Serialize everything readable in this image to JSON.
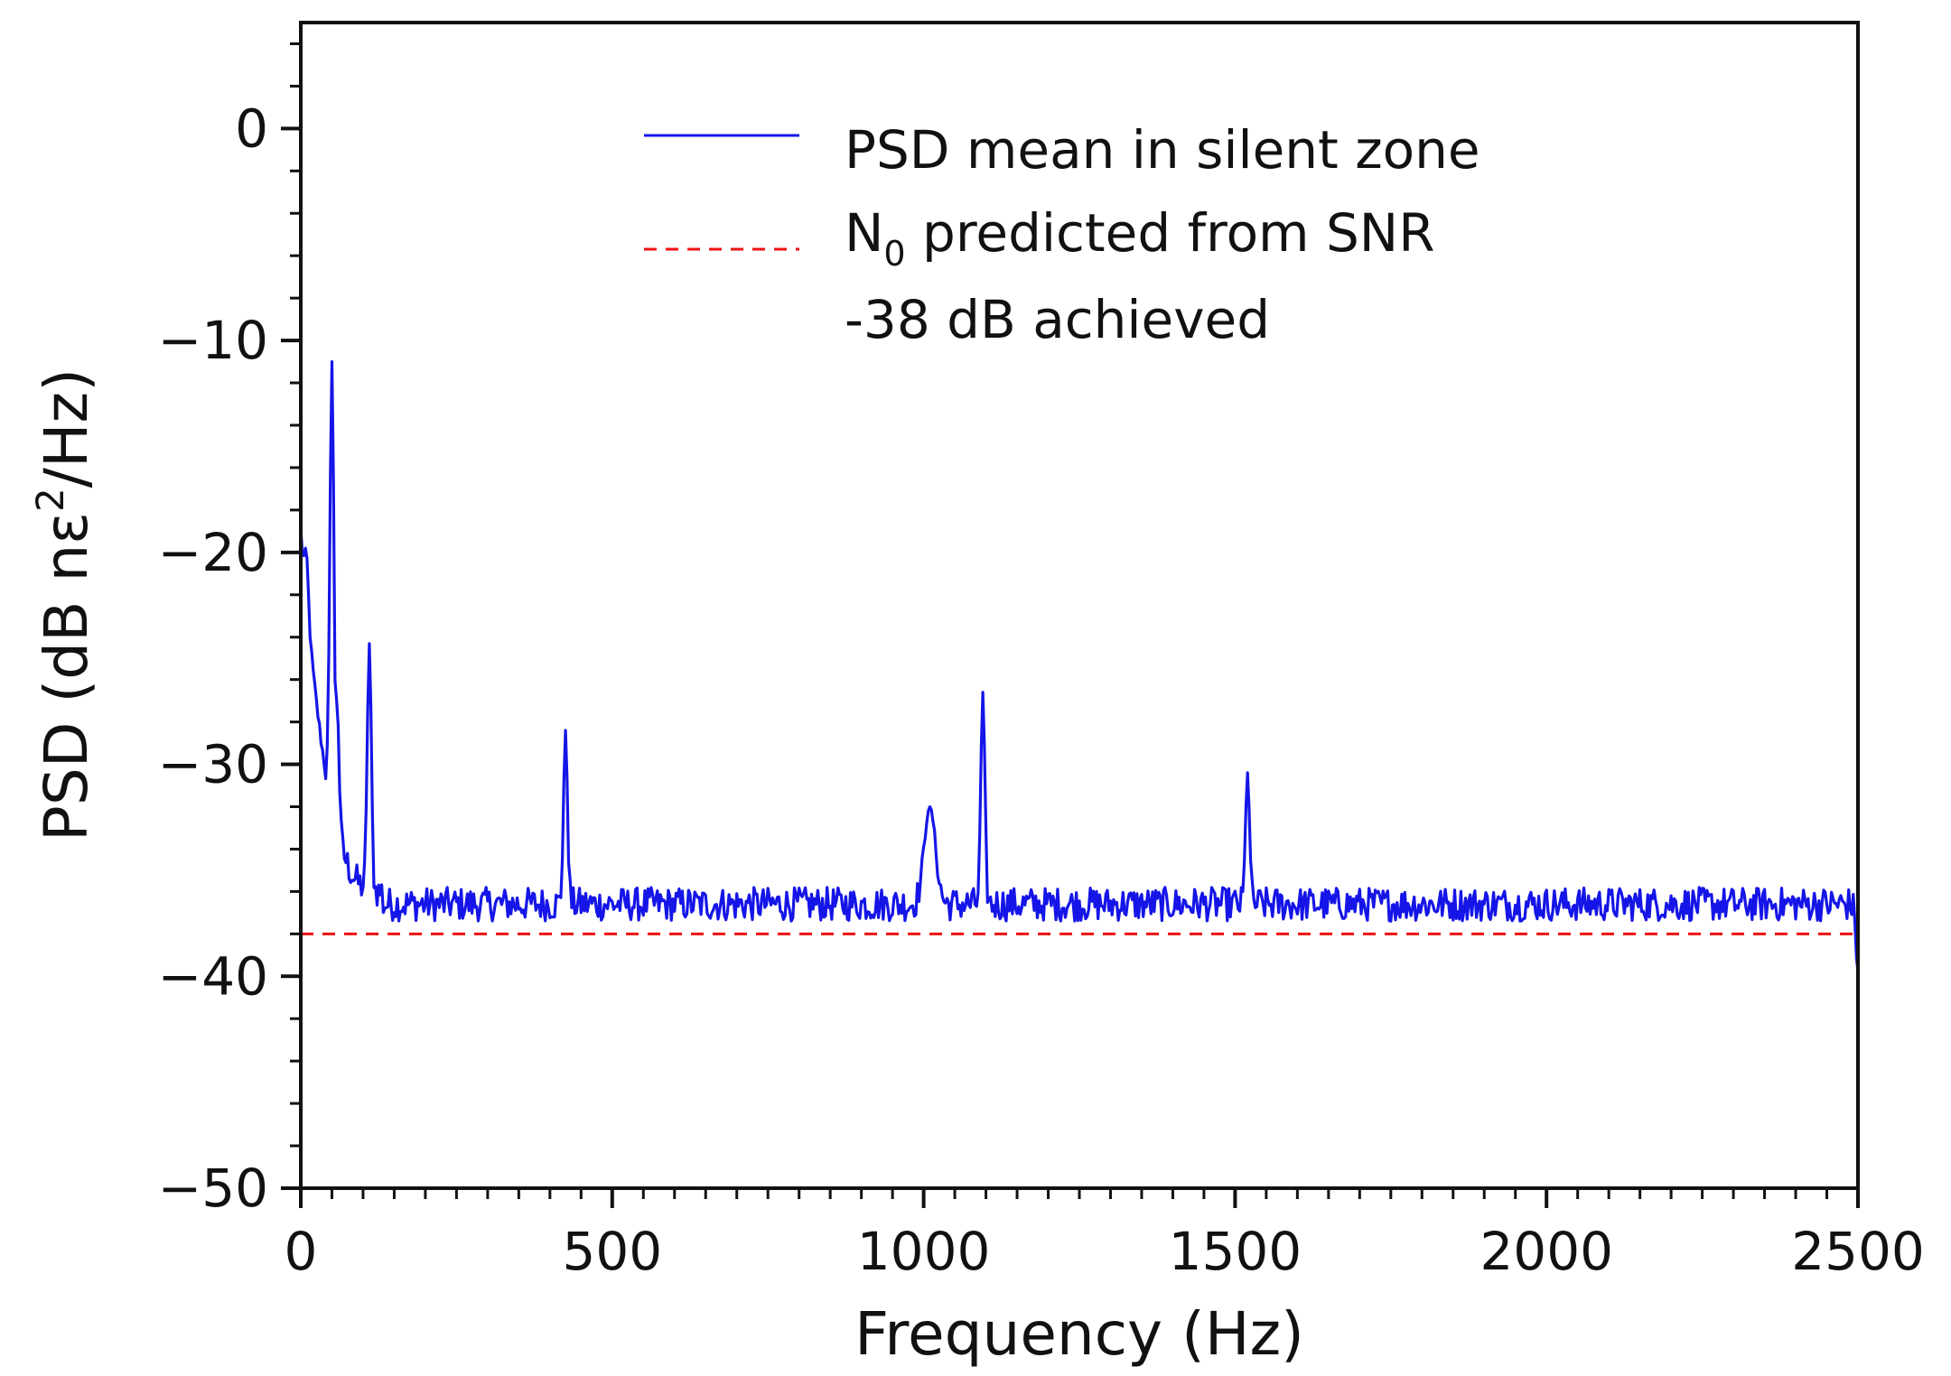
{
  "chart_data": {
    "type": "line",
    "title": "",
    "xlabel": "Frequency (Hz)",
    "ylabel": {
      "prefix": "PSD (dB nε",
      "superscript": "2",
      "suffix": "/Hz)"
    },
    "xlim": [
      0,
      2500
    ],
    "ylim": [
      -50,
      5
    ],
    "xticks": [
      0,
      500,
      1000,
      1500,
      2000,
      2500
    ],
    "yticks": [
      -50,
      -40,
      -30,
      -20,
      -10,
      0
    ],
    "xtick_labels": [
      "0",
      "500",
      "1000",
      "1500",
      "2000",
      "2500"
    ],
    "ytick_labels": [
      "−50",
      "−40",
      "−30",
      "−20",
      "−10",
      "0"
    ],
    "grid": false,
    "legend_position": "top-center",
    "series": [
      {
        "name": "PSD mean in silent zone",
        "color": "#1515e8",
        "style": "solid",
        "baseline_db": -36.6,
        "noise_amplitude_db": 1.6,
        "decay_start": [
          0,
          -19.0
        ],
        "decay_end": [
          130,
          -36.0
        ],
        "peaks": [
          {
            "f": 8,
            "psd": -19.8
          },
          {
            "f": 50,
            "psd": -11.0
          },
          {
            "f": 58,
            "psd": -27.0
          },
          {
            "f": 110,
            "psd": -24.3
          },
          {
            "f": 425,
            "psd": -28.4
          },
          {
            "f": 1010,
            "psd": -32.0
          },
          {
            "f": 1095,
            "psd": -26.6
          },
          {
            "f": 1520,
            "psd": -30.4
          },
          {
            "f": 2500,
            "psd": -39.8
          }
        ]
      },
      {
        "name": "N0 predicted from SNR",
        "legend_parts": [
          "N",
          "0",
          " predicted from SNR"
        ],
        "color": "#ee1111",
        "style": "dashed",
        "value_db": -38.0
      }
    ],
    "annotation": "-38 dB achieved"
  }
}
